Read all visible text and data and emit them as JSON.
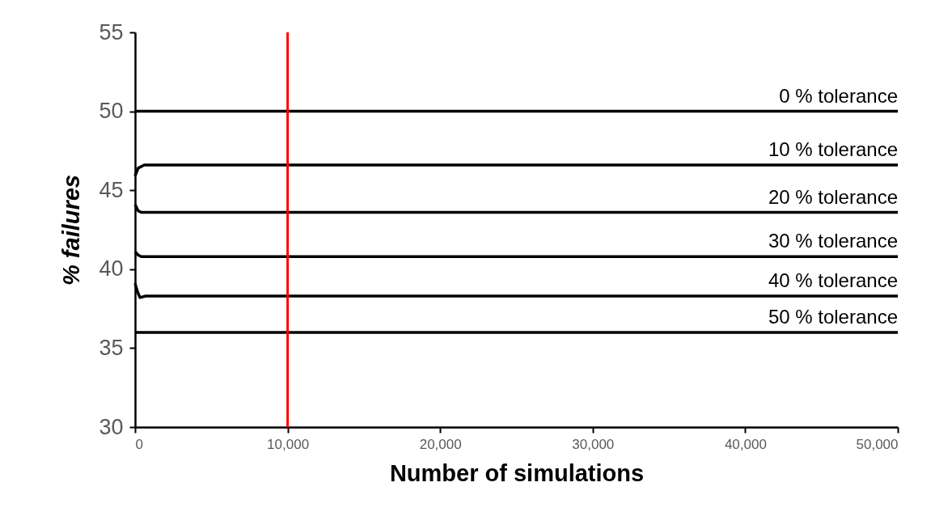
{
  "chart_data": {
    "type": "line",
    "xlabel": "Number of simulations",
    "ylabel": "% failures",
    "xlim": [
      0,
      50000
    ],
    "xticks": [
      0,
      {
        "value": 10000,
        "label": "10,000"
      },
      {
        "value": 20000,
        "label": "20,000"
      },
      {
        "value": 30000,
        "label": "30,000"
      },
      {
        "value": 40000,
        "label": "40,000"
      },
      {
        "value": 50000,
        "label": "50,000"
      }
    ],
    "ylim": [
      30,
      55
    ],
    "yticks": [
      30,
      35,
      40,
      45,
      50,
      55
    ],
    "grid": false,
    "legend": false,
    "marker": "none",
    "line_style": "solid",
    "series": [
      {
        "name": "0 % tolerance",
        "color": "#000000",
        "x": [
          0,
          50000
        ],
        "values": [
          50,
          50
        ]
      },
      {
        "name": "10 % tolerance",
        "color": "#000000",
        "x": [
          0,
          200,
          600,
          50000
        ],
        "values": [
          45.9,
          46.4,
          46.6,
          46.6
        ]
      },
      {
        "name": "20 % tolerance",
        "color": "#000000",
        "x": [
          0,
          200,
          400,
          50000
        ],
        "values": [
          44.1,
          43.7,
          43.6,
          43.6
        ]
      },
      {
        "name": "30 % tolerance",
        "color": "#000000",
        "x": [
          0,
          200,
          400,
          50000
        ],
        "values": [
          41.1,
          40.9,
          40.8,
          40.8
        ]
      },
      {
        "name": "40 % tolerance",
        "color": "#000000",
        "x": [
          0,
          150,
          320,
          700,
          50000
        ],
        "values": [
          39.1,
          38.6,
          38.2,
          38.3,
          38.3
        ]
      },
      {
        "name": "50 % tolerance",
        "color": "#000000",
        "x": [
          0,
          50000
        ],
        "values": [
          36,
          36
        ]
      }
    ],
    "ref_lines": [
      {
        "axis": "x",
        "value": 10000,
        "color": "#ff0000"
      }
    ]
  }
}
